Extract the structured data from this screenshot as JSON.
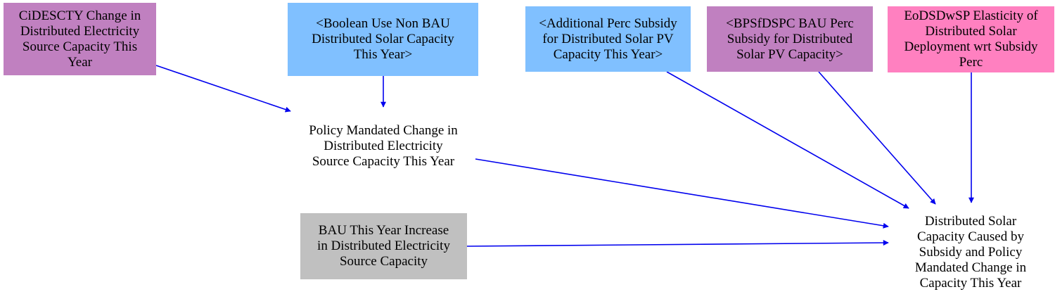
{
  "colors": {
    "purple": "#c080c0",
    "blue": "#80c0ff",
    "pink": "#ff80c0",
    "gray": "#c0c0c0",
    "edge": "#0000ee"
  },
  "nodes": {
    "cidescty": {
      "label": "CiDESCTY Change in\nDistributed Electricity\nSource Capacity This\nYear"
    },
    "boolean_use": {
      "label": "<Boolean Use Non BAU\nDistributed Solar Capacity\nThis Year>"
    },
    "additional_perc": {
      "label": "<Additional Perc Subsidy\nfor Distributed Solar PV\nCapacity This Year>"
    },
    "bpsfdspc": {
      "label": "<BPSfDSPC BAU Perc\nSubsidy for Distributed\nSolar PV Capacity>"
    },
    "eodsdwsp": {
      "label": "EoDSDwSP Elasticity of\nDistributed Solar\nDeployment wrt Subsidy\nPerc"
    },
    "policy_mandated": {
      "label": "Policy Mandated Change in\nDistributed Electricity\nSource Capacity This Year"
    },
    "bau_increase": {
      "label": "BAU This Year Increase\nin Distributed Electricity\nSource Capacity"
    },
    "distributed_solar": {
      "label": "Distributed Solar\nCapacity Caused by\nSubsidy and Policy\nMandated Change in\nCapacity This Year"
    }
  }
}
